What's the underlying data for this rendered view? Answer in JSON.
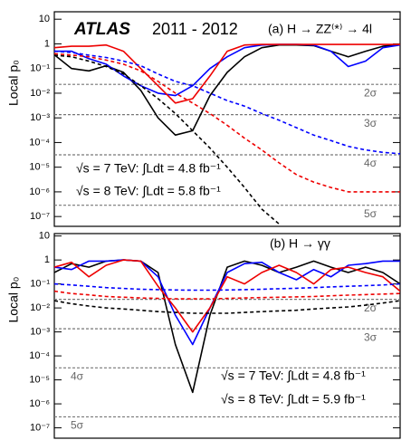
{
  "chart_data": [
    {
      "type": "line",
      "log_y": true,
      "ylabel": "Local p₀",
      "annotations": [
        "ATLAS",
        "2011 - 2012",
        "(a) H → ZZ⁽*⁾ → 4l",
        "√s = 7 TeV: ∫Ldt = 4.8 fb⁻¹",
        "√s = 8 TeV: ∫Ldt = 5.8 fb⁻¹"
      ],
      "x": [
        110,
        112,
        114,
        116,
        118,
        120,
        122,
        124,
        126,
        128,
        130,
        132,
        134,
        136,
        138,
        140,
        142,
        144,
        146,
        148,
        150
      ],
      "xlim": [
        110,
        150
      ],
      "ylim": [
        4e-08,
        20
      ],
      "yticks": [
        {
          "value": 10,
          "label": "10"
        },
        {
          "value": 1,
          "label": "1"
        },
        {
          "value": 0.1,
          "label": "10⁻¹"
        },
        {
          "value": 0.01,
          "label": "10⁻²"
        },
        {
          "value": 0.001,
          "label": "10⁻³"
        },
        {
          "value": 0.0001,
          "label": "10⁻⁴"
        },
        {
          "value": 1e-05,
          "label": "10⁻⁵"
        },
        {
          "value": 1e-06,
          "label": "10⁻⁶"
        },
        {
          "value": 1e-07,
          "label": "10⁻⁷"
        }
      ],
      "sigma_lines": [
        {
          "value": 0.0228,
          "label": "2σ"
        },
        {
          "value": 0.00135,
          "label": "3σ"
        },
        {
          "value": 3.17e-05,
          "label": "4σ"
        },
        {
          "value": 2.87e-07,
          "label": "5σ"
        }
      ],
      "series": [
        {
          "color": "#000000",
          "dashed": false,
          "values": [
            0.36,
            0.1,
            0.08,
            0.13,
            0.07,
            0.013,
            0.001,
            0.0002,
            0.0003,
            0.008,
            0.07,
            0.3,
            0.7,
            0.9,
            0.9,
            0.85,
            0.5,
            0.3,
            0.5,
            0.8,
            0.95
          ]
        },
        {
          "color": "#0000ff",
          "dashed": false,
          "values": [
            0.5,
            0.5,
            0.25,
            0.15,
            0.05,
            0.02,
            0.01,
            0.008,
            0.02,
            0.1,
            0.3,
            0.7,
            0.9,
            0.95,
            0.95,
            0.9,
            0.5,
            0.12,
            0.2,
            0.7,
            0.9
          ]
        },
        {
          "color": "#ee0000",
          "dashed": false,
          "values": [
            0.7,
            0.8,
            0.8,
            0.9,
            0.5,
            0.1,
            0.02,
            0.004,
            0.006,
            0.05,
            0.5,
            0.9,
            0.95,
            0.95,
            0.95,
            0.95,
            0.95,
            0.95,
            0.95,
            0.95,
            0.95
          ]
        },
        {
          "color": "#000000",
          "dashed": true,
          "values": [
            0.35,
            0.3,
            0.2,
            0.12,
            0.06,
            0.02,
            0.006,
            0.0015,
            0.0003,
            6e-05,
            1e-05,
            1.5e-06,
            2e-07,
            5e-08,
            null,
            null,
            null,
            null,
            null,
            null,
            null
          ]
        },
        {
          "color": "#0000ff",
          "dashed": true,
          "values": [
            0.5,
            0.45,
            0.35,
            0.28,
            0.2,
            0.13,
            0.06,
            0.03,
            0.02,
            0.01,
            0.005,
            0.003,
            0.0015,
            0.0008,
            0.0004,
            0.0002,
            0.00012,
            7e-05,
            5e-05,
            4e-05,
            3.5e-05
          ]
        },
        {
          "color": "#ee0000",
          "dashed": true,
          "values": [
            0.4,
            0.35,
            0.3,
            0.22,
            0.15,
            0.08,
            0.03,
            0.01,
            0.004,
            0.0015,
            0.0005,
            0.00015,
            5e-05,
            1.5e-05,
            5e-06,
            2.5e-06,
            1.5e-06,
            1e-06,
            1e-06,
            1e-06,
            1e-06
          ]
        }
      ]
    },
    {
      "type": "line",
      "log_y": true,
      "ylabel": "Local p₀",
      "annotations": [
        "(b) H → γγ",
        "√s = 7 TeV: ∫Ldt = 4.8 fb⁻¹",
        "√s = 8 TeV: ∫Ldt = 5.9 fb⁻¹"
      ],
      "x": [
        110,
        112,
        114,
        116,
        118,
        120,
        122,
        124,
        126,
        128,
        130,
        132,
        134,
        136,
        138,
        140,
        142,
        144,
        146,
        148,
        150
      ],
      "xlim": [
        110,
        150
      ],
      "ylim": [
        3.7e-08,
        12.6
      ],
      "yticks": [
        {
          "value": 10,
          "label": "10"
        },
        {
          "value": 1,
          "label": "1"
        },
        {
          "value": 0.1,
          "label": "10⁻¹"
        },
        {
          "value": 0.01,
          "label": "10⁻²"
        },
        {
          "value": 0.001,
          "label": "10⁻³"
        },
        {
          "value": 0.0001,
          "label": "10⁻⁴"
        },
        {
          "value": 1e-05,
          "label": "10⁻⁵"
        },
        {
          "value": 1e-06,
          "label": "10⁻⁶"
        },
        {
          "value": 1e-07,
          "label": "10⁻⁷"
        }
      ],
      "sigma_lines": [
        {
          "value": 0.0228,
          "label": "2σ"
        },
        {
          "value": 0.00135,
          "label": "3σ"
        },
        {
          "value": 3.17e-05,
          "label": "4σ"
        },
        {
          "value": 2.87e-07,
          "label": "5σ"
        }
      ],
      "series": [
        {
          "color": "#000000",
          "dashed": false,
          "values": [
            0.3,
            0.7,
            0.5,
            0.9,
            1,
            0.9,
            0.3,
            0.0003,
            3e-06,
            0.005,
            0.5,
            0.9,
            0.6,
            0.3,
            0.5,
            0.9,
            0.5,
            0.3,
            0.5,
            0.3,
            0.1
          ]
        },
        {
          "color": "#0000ff",
          "dashed": false,
          "values": [
            0.5,
            0.4,
            0.9,
            0.9,
            1,
            0.9,
            0.2,
            0.005,
            0.0003,
            0.01,
            0.3,
            0.7,
            0.8,
            0.3,
            0.15,
            0.4,
            0.2,
            0.6,
            0.7,
            0.9,
            0.9
          ]
        },
        {
          "color": "#ee0000",
          "dashed": false,
          "values": [
            0.5,
            0.8,
            0.2,
            0.6,
            1,
            0.9,
            0.08,
            0.01,
            0.001,
            0.01,
            0.2,
            0.1,
            0.3,
            0.6,
            0.3,
            0.1,
            0.4,
            0.5,
            0.3,
            0.2,
            0.05
          ]
        },
        {
          "color": "#000000",
          "dashed": true,
          "values": [
            0.02,
            0.015,
            0.012,
            0.01,
            0.009,
            0.008,
            0.007,
            0.0065,
            0.006,
            0.006,
            0.006,
            0.0065,
            0.007,
            0.0075,
            0.008,
            0.009,
            0.01,
            0.011,
            0.013,
            0.016,
            0.02
          ]
        },
        {
          "color": "#0000ff",
          "dashed": true,
          "values": [
            0.1,
            0.09,
            0.08,
            0.07,
            0.065,
            0.06,
            0.058,
            0.056,
            0.055,
            0.055,
            0.056,
            0.058,
            0.06,
            0.063,
            0.066,
            0.07,
            0.075,
            0.08,
            0.085,
            0.09,
            0.1
          ]
        },
        {
          "color": "#ee0000",
          "dashed": true,
          "values": [
            0.05,
            0.04,
            0.035,
            0.03,
            0.028,
            0.026,
            0.025,
            0.024,
            0.024,
            0.024,
            0.025,
            0.026,
            0.027,
            0.028,
            0.029,
            0.03,
            0.032,
            0.034,
            0.036,
            0.038,
            0.04
          ]
        }
      ]
    }
  ]
}
